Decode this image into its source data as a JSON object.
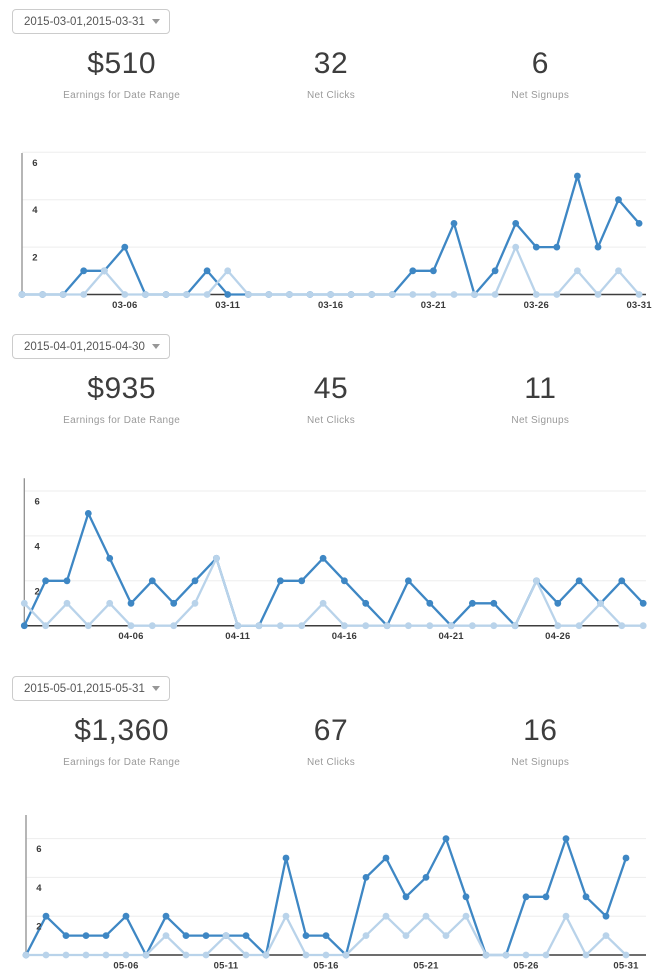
{
  "colors": {
    "clicks_line": "#3e87c4",
    "signups_line": "#b9d3ea",
    "gridline": "#ededed",
    "y_axis_line": "#8f8f8f",
    "x_axis_line": "#3d3d3d",
    "big_number_text": "#3d3d3d",
    "stat_label_text": "#9a9a9a",
    "dropdown_text": "#555555",
    "dropdown_border": "#cccccc",
    "tick_text": "#3a3a3a"
  },
  "sections": [
    {
      "date_range": "2015-03-01,2015-03-31",
      "stats": [
        {
          "value": "$510",
          "label": "Earnings for Date Range"
        },
        {
          "value": "32",
          "label": "Net Clicks"
        },
        {
          "value": "6",
          "label": "Net Signups"
        }
      ]
    },
    {
      "date_range": "2015-04-01,2015-04-30",
      "stats": [
        {
          "value": "$935",
          "label": "Earnings for Date Range"
        },
        {
          "value": "45",
          "label": "Net Clicks"
        },
        {
          "value": "11",
          "label": "Net Signups"
        }
      ]
    },
    {
      "date_range": "2015-05-01,2015-05-31",
      "stats": [
        {
          "value": "$1,360",
          "label": "Earnings for Date Range"
        },
        {
          "value": "67",
          "label": "Net Clicks"
        },
        {
          "value": "16",
          "label": "Net Signups"
        }
      ]
    }
  ],
  "chart_data": [
    {
      "type": "line",
      "month": "2015-03",
      "x_unit": "day of month",
      "days": 31,
      "grid": true,
      "legend": "none",
      "yticks": [
        2,
        4,
        6
      ],
      "ylim": [
        0,
        6
      ],
      "x_tick_labels": [
        "03-06",
        "03-11",
        "03-16",
        "03-21",
        "03-26",
        "03-31"
      ],
      "series": [
        {
          "name": "Net Clicks",
          "color": "#3e87c4",
          "values": [
            0,
            0,
            0,
            1,
            1,
            2,
            0,
            0,
            0,
            1,
            0,
            0,
            0,
            0,
            0,
            0,
            0,
            0,
            0,
            1,
            1,
            3,
            0,
            1,
            3,
            2,
            2,
            5,
            2,
            4,
            3
          ]
        },
        {
          "name": "Net Signups",
          "color": "#b9d3ea",
          "values": [
            0,
            0,
            0,
            0,
            1,
            0,
            0,
            0,
            0,
            0,
            1,
            0,
            0,
            0,
            0,
            0,
            0,
            0,
            0,
            0,
            0,
            0,
            0,
            0,
            2,
            0,
            0,
            1,
            0,
            1,
            0
          ]
        }
      ]
    },
    {
      "type": "line",
      "month": "2015-04",
      "x_unit": "day of month",
      "days": 30,
      "grid": true,
      "legend": "none",
      "yticks": [
        2,
        4,
        6
      ],
      "ylim": [
        0,
        6.6
      ],
      "x_tick_labels": [
        "04-06",
        "04-11",
        "04-16",
        "04-21",
        "04-26"
      ],
      "series": [
        {
          "name": "Net Clicks",
          "color": "#3e87c4",
          "values": [
            0,
            2,
            2,
            5,
            3,
            1,
            2,
            1,
            2,
            3,
            0,
            0,
            2,
            2,
            3,
            2,
            1,
            0,
            2,
            1,
            0,
            1,
            1,
            0,
            2,
            1,
            2,
            1,
            2,
            1
          ]
        },
        {
          "name": "Net Signups",
          "color": "#b9d3ea",
          "values": [
            1,
            0,
            1,
            0,
            1,
            0,
            0,
            0,
            1,
            3,
            0,
            0,
            0,
            0,
            1,
            0,
            0,
            0,
            0,
            0,
            0,
            0,
            0,
            0,
            2,
            0,
            0,
            1,
            0,
            0
          ]
        }
      ]
    },
    {
      "type": "line",
      "month": "2015-05",
      "x_unit": "day of month",
      "days": 31,
      "grid": true,
      "legend": "none",
      "yticks": [
        2,
        4,
        6
      ],
      "ylim": [
        0,
        7.2
      ],
      "x_tick_labels": [
        "05-06",
        "05-11",
        "05-16",
        "05-21",
        "05-26",
        "05-31"
      ],
      "series": [
        {
          "name": "Net Clicks",
          "color": "#3e87c4",
          "values": [
            0,
            2,
            1,
            1,
            1,
            2,
            0,
            2,
            1,
            1,
            1,
            1,
            0,
            5,
            1,
            1,
            0,
            4,
            5,
            3,
            4,
            6,
            3,
            0,
            0,
            3,
            3,
            6,
            3,
            2,
            5
          ]
        },
        {
          "name": "Net Signups",
          "color": "#b9d3ea",
          "values": [
            0,
            0,
            0,
            0,
            0,
            0,
            0,
            1,
            0,
            0,
            1,
            0,
            0,
            2,
            0,
            0,
            0,
            1,
            2,
            1,
            2,
            1,
            2,
            0,
            0,
            0,
            0,
            2,
            0,
            1,
            0
          ]
        }
      ]
    }
  ]
}
